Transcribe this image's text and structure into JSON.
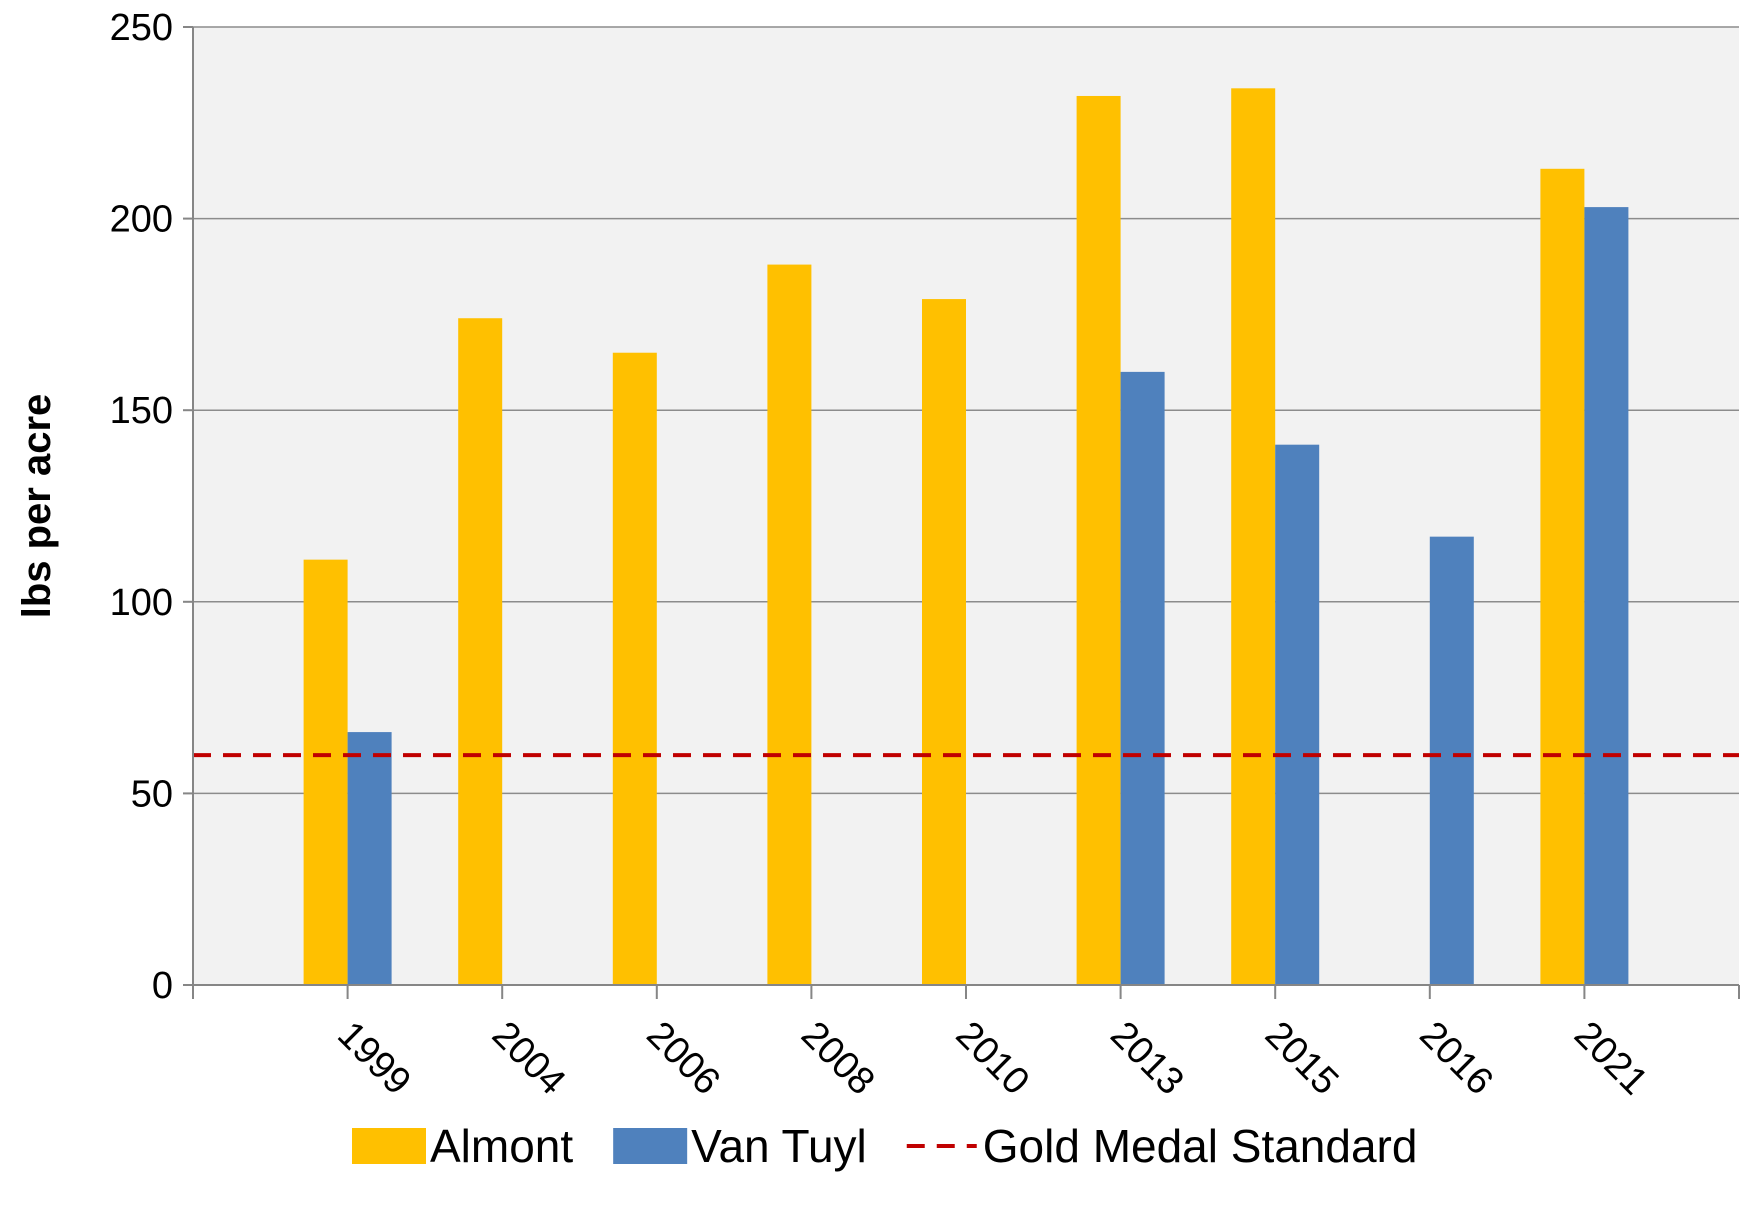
{
  "chart_data": {
    "type": "bar",
    "categories": [
      "1999",
      "2004",
      "2006",
      "2008",
      "2010",
      "2013",
      "2015",
      "2016",
      "2021"
    ],
    "series": [
      {
        "name": "Almont",
        "color": "#FFC000",
        "values": [
          111,
          174,
          165,
          188,
          179,
          232,
          234,
          null,
          213
        ]
      },
      {
        "name": "Van Tuyl",
        "color": "#4F81BD",
        "values": [
          66,
          null,
          null,
          null,
          null,
          160,
          141,
          117,
          203
        ]
      }
    ],
    "reference_line": {
      "name": "Gold Medal Standard",
      "value": 60,
      "color": "#C00000",
      "style": "dashed"
    },
    "title": "",
    "xlabel": "",
    "ylabel": "lbs per acre",
    "ylim": [
      0,
      250
    ],
    "yticks": [
      0,
      50,
      100,
      150,
      200,
      250
    ],
    "grid": true,
    "plot_background": "#F2F2F2",
    "legend_position": "bottom"
  }
}
